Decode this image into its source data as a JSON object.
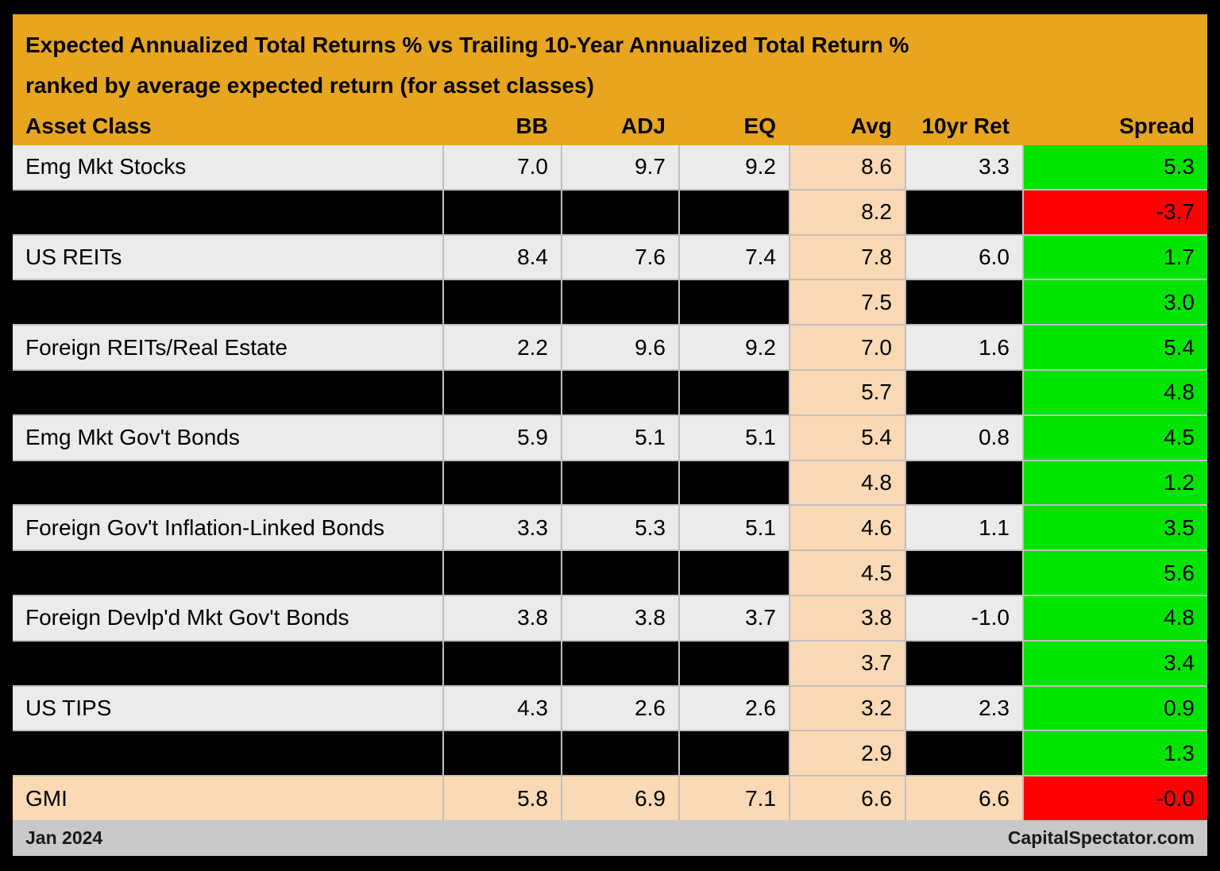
{
  "chart_data": {
    "type": "table",
    "title": "Expected Annualized Total Returns % vs Trailing 10-Year Annualized Total Return %",
    "subtitle": "ranked by average expected return (for asset classes)",
    "columns": [
      "Asset Class",
      "BB",
      "ADJ",
      "EQ",
      "Avg",
      "10yr Ret",
      "Spread"
    ],
    "rows": [
      {
        "cells": [
          "Emg Mkt Stocks",
          "7.0",
          "9.7",
          "9.2",
          "8.6",
          "3.3",
          "5.3"
        ],
        "redacted": false,
        "highlight": false,
        "spread_negative": false
      },
      {
        "cells": [
          "",
          "",
          "",
          "",
          "8.2",
          "",
          "-3.7"
        ],
        "redacted": true,
        "highlight": false,
        "spread_negative": true
      },
      {
        "cells": [
          "US REITs",
          "8.4",
          "7.6",
          "7.4",
          "7.8",
          "6.0",
          "1.7"
        ],
        "redacted": false,
        "highlight": false,
        "spread_negative": false
      },
      {
        "cells": [
          "",
          "",
          "",
          "",
          "7.5",
          "",
          "3.0"
        ],
        "redacted": true,
        "highlight": false,
        "spread_negative": false
      },
      {
        "cells": [
          "Foreign REITs/Real Estate",
          "2.2",
          "9.6",
          "9.2",
          "7.0",
          "1.6",
          "5.4"
        ],
        "redacted": false,
        "highlight": false,
        "spread_negative": false
      },
      {
        "cells": [
          "",
          "",
          "",
          "",
          "5.7",
          "",
          "4.8"
        ],
        "redacted": true,
        "highlight": false,
        "spread_negative": false
      },
      {
        "cells": [
          "Emg Mkt Gov't Bonds",
          "5.9",
          "5.1",
          "5.1",
          "5.4",
          "0.8",
          "4.5"
        ],
        "redacted": false,
        "highlight": false,
        "spread_negative": false
      },
      {
        "cells": [
          "",
          "",
          "",
          "",
          "4.8",
          "",
          "1.2"
        ],
        "redacted": true,
        "highlight": false,
        "spread_negative": false
      },
      {
        "cells": [
          "Foreign Gov't Inflation-Linked Bonds",
          "3.3",
          "5.3",
          "5.1",
          "4.6",
          "1.1",
          "3.5"
        ],
        "redacted": false,
        "highlight": false,
        "spread_negative": false
      },
      {
        "cells": [
          "",
          "",
          "",
          "",
          "4.5",
          "",
          "5.6"
        ],
        "redacted": true,
        "highlight": false,
        "spread_negative": false
      },
      {
        "cells": [
          "Foreign Devlp'd Mkt Gov't Bonds",
          "3.8",
          "3.8",
          "3.7",
          "3.8",
          "-1.0",
          "4.8"
        ],
        "redacted": false,
        "highlight": false,
        "spread_negative": false
      },
      {
        "cells": [
          "",
          "",
          "",
          "",
          "3.7",
          "",
          "3.4"
        ],
        "redacted": true,
        "highlight": false,
        "spread_negative": false
      },
      {
        "cells": [
          "US TIPS",
          "4.3",
          "2.6",
          "2.6",
          "3.2",
          "2.3",
          "0.9"
        ],
        "redacted": false,
        "highlight": false,
        "spread_negative": false
      },
      {
        "cells": [
          "",
          "",
          "",
          "",
          "2.9",
          "",
          "1.3"
        ],
        "redacted": true,
        "highlight": false,
        "spread_negative": false
      },
      {
        "cells": [
          "GMI",
          "5.8",
          "6.9",
          "7.1",
          "6.6",
          "6.6",
          "-0.0"
        ],
        "redacted": false,
        "highlight": true,
        "spread_negative": true
      }
    ],
    "footer_left": "Jan 2024",
    "footer_right": "CapitalSpectator.com",
    "colors": {
      "header_bg": "#E7A520",
      "row_bg": "#EBEBEB",
      "redacted_bg": "#000000",
      "avg_bg": "#FBD9B4",
      "highlight_bg": "#FBD9B4",
      "spread_positive": "#00E400",
      "spread_negative": "#FE0000",
      "gridline": "#BFBFBF",
      "footer_bg": "#C9C9C9",
      "text": "#000000"
    },
    "layout": {
      "avg_column_index": 4,
      "spread_column_index": 6,
      "grid": "on",
      "legend": "none"
    }
  }
}
